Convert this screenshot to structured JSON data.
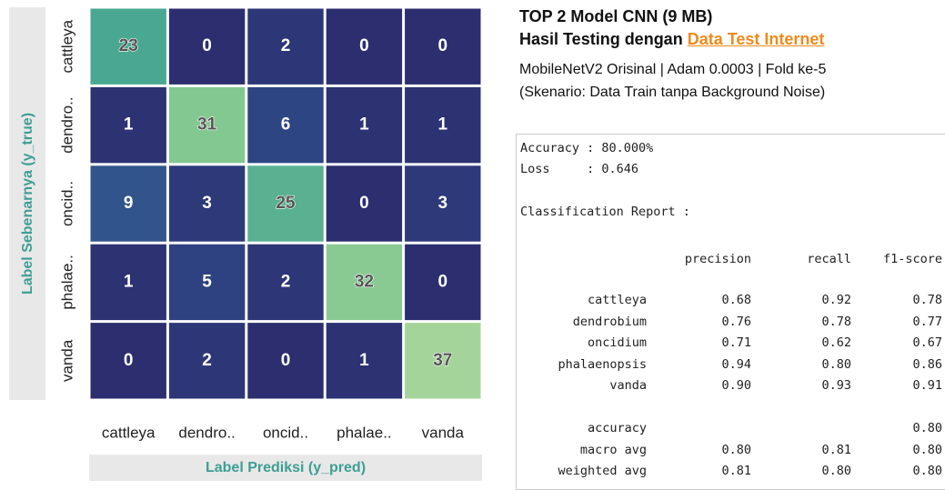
{
  "chart_data": {
    "type": "heatmap",
    "xlabel": "Label Prediksi (y_pred)",
    "ylabel": "Label Sebenarnya (y_true)",
    "xcategories": [
      "cattleya",
      "dendro..",
      "oncid..",
      "phalae..",
      "vanda"
    ],
    "ycategories": [
      "cattleya",
      "dendro..",
      "oncid..",
      "phalae..",
      "vanda"
    ],
    "values": [
      [
        23,
        0,
        2,
        0,
        0
      ],
      [
        1,
        31,
        6,
        1,
        1
      ],
      [
        9,
        3,
        25,
        0,
        3
      ],
      [
        1,
        5,
        2,
        32,
        0
      ],
      [
        0,
        2,
        0,
        1,
        37
      ]
    ],
    "colorscale": [
      "#2c2e6f",
      "#2f4a88",
      "#357a96",
      "#44a592",
      "#7cc58f",
      "#a5d49b"
    ]
  },
  "panel": {
    "title": "TOP 2 Model CNN (9 MB)",
    "subtitle_prefix": "Hasil Testing dengan",
    "subtitle_link": "Data Test Internet",
    "desc": [
      "MobileNetV2 Orisinal | Adam 0.0003 | Fold ke-5",
      "(Skenario: Data Train tanpa Background Noise)"
    ],
    "report": {
      "summary": [
        "Accuracy : 80.000%",
        "Loss     : 0.646"
      ],
      "heading": "Classification Report :",
      "columns": [
        "precision",
        "recall",
        "f1-score"
      ],
      "classes": [
        {
          "label": "cattleya",
          "values": [
            "0.68",
            "0.92",
            "0.78"
          ]
        },
        {
          "label": "dendrobium",
          "values": [
            "0.76",
            "0.78",
            "0.77"
          ]
        },
        {
          "label": "oncidium",
          "values": [
            "0.71",
            "0.62",
            "0.67"
          ]
        },
        {
          "label": "phalaenopsis",
          "values": [
            "0.94",
            "0.80",
            "0.86"
          ]
        },
        {
          "label": "vanda",
          "values": [
            "0.90",
            "0.93",
            "0.91"
          ]
        }
      ],
      "averages": [
        {
          "label": "accuracy",
          "values": [
            "0.80"
          ]
        },
        {
          "label": "macro avg",
          "values": [
            "0.80",
            "0.81",
            "0.80"
          ]
        },
        {
          "label": "weighted avg",
          "values": [
            "0.81",
            "0.80",
            "0.80"
          ]
        }
      ]
    }
  }
}
